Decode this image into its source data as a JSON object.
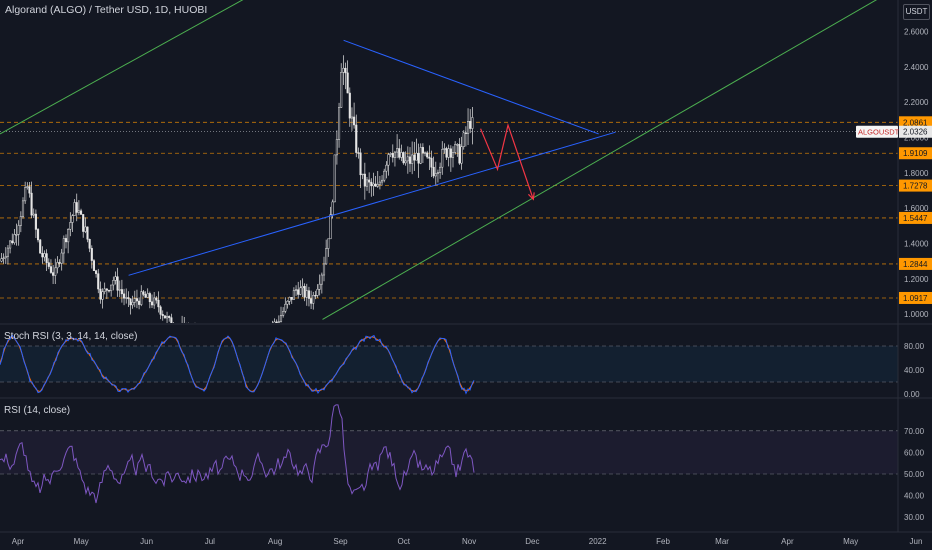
{
  "header": {
    "title": "Algorand (ALGO) / Tether USD, 1D, HUOBI",
    "currency_button": "USDT"
  },
  "colors": {
    "background": "#131722",
    "up": "#e6e6e6",
    "down": "#e6e6e6",
    "trend_blue": "#2962ff",
    "trend_green": "#4caf50",
    "arrow_red": "#f23645",
    "level_orange": "#ff9800",
    "stoch_k": "#2962ff",
    "stoch_d": "#ff6d00",
    "rsi": "#7e57c2"
  },
  "price_axis": {
    "ticks": [
      "2.6000",
      "2.4000",
      "2.2000",
      "2.0000",
      "1.8000",
      "1.6000",
      "1.4000",
      "1.2000",
      "1.0000"
    ],
    "tick_values": [
      2.6,
      2.4,
      2.2,
      2.0,
      1.8,
      1.6,
      1.4,
      1.2,
      1.0
    ]
  },
  "time_axis": [
    "Apr",
    "May",
    "Jun",
    "Jul",
    "Aug",
    "Sep",
    "Oct",
    "Nov",
    "Dec",
    "2022",
    "Feb",
    "Mar",
    "Apr",
    "May",
    "Jun"
  ],
  "levels": [
    {
      "label": "2.0861",
      "value": 2.0861
    },
    {
      "label": "1.9109",
      "value": 1.9109
    },
    {
      "label": "1.7278",
      "value": 1.7278
    },
    {
      "label": "1.5447",
      "value": 1.5447
    },
    {
      "label": "1.2844",
      "value": 1.2844
    },
    {
      "label": "1.0917",
      "value": 1.0917
    }
  ],
  "current_price": {
    "symbol": "ALGOUSDT",
    "label": "2.0326",
    "value": 2.0326
  },
  "stoch_rsi": {
    "label": "Stoch RSI (3, 3, 14, 14, close)",
    "ticks": [
      "80.00",
      "40.00",
      "0.00"
    ],
    "tick_values": [
      80,
      40,
      0
    ],
    "bands": [
      80,
      20
    ]
  },
  "rsi": {
    "label": "RSI (14, close)",
    "ticks": [
      "70.00",
      "60.00",
      "50.00",
      "40.00",
      "30.00"
    ],
    "tick_values": [
      70,
      60,
      50,
      40,
      30
    ],
    "bands": [
      70,
      50
    ]
  },
  "chart_data": {
    "type": "candlestick",
    "title": "Algorand (ALGO) / Tether USD, 1D, HUOBI",
    "x_range": [
      "2021-04-01",
      "2022-06-01"
    ],
    "y_range": [
      0.95,
      2.75
    ],
    "close_series": [
      {
        "date": "2021-04-01",
        "value": 1.3
      },
      {
        "date": "2021-04-08",
        "value": 1.45
      },
      {
        "date": "2021-04-14",
        "value": 1.72
      },
      {
        "date": "2021-04-20",
        "value": 1.35
      },
      {
        "date": "2021-04-27",
        "value": 1.22
      },
      {
        "date": "2021-05-01",
        "value": 1.4
      },
      {
        "date": "2021-05-07",
        "value": 1.62
      },
      {
        "date": "2021-05-12",
        "value": 1.45
      },
      {
        "date": "2021-05-19",
        "value": 1.1
      },
      {
        "date": "2021-05-25",
        "value": 1.2
      },
      {
        "date": "2021-06-01",
        "value": 1.05
      },
      {
        "date": "2021-06-08",
        "value": 1.1
      },
      {
        "date": "2021-06-15",
        "value": 1.05
      },
      {
        "date": "2021-06-22",
        "value": 0.92
      },
      {
        "date": "2021-07-01",
        "value": 0.9
      },
      {
        "date": "2021-07-15",
        "value": 0.82
      },
      {
        "date": "2021-08-01",
        "value": 0.88
      },
      {
        "date": "2021-08-10",
        "value": 0.95
      },
      {
        "date": "2021-08-20",
        "value": 1.15
      },
      {
        "date": "2021-08-27",
        "value": 1.08
      },
      {
        "date": "2021-09-01",
        "value": 1.25
      },
      {
        "date": "2021-09-05",
        "value": 1.55
      },
      {
        "date": "2021-09-08",
        "value": 2.05
      },
      {
        "date": "2021-09-10",
        "value": 2.45
      },
      {
        "date": "2021-09-14",
        "value": 2.15
      },
      {
        "date": "2021-09-20",
        "value": 1.75
      },
      {
        "date": "2021-09-27",
        "value": 1.7
      },
      {
        "date": "2021-10-03",
        "value": 1.95
      },
      {
        "date": "2021-10-10",
        "value": 1.85
      },
      {
        "date": "2021-10-17",
        "value": 1.9
      },
      {
        "date": "2021-10-24",
        "value": 1.82
      },
      {
        "date": "2021-10-31",
        "value": 1.95
      },
      {
        "date": "2021-11-05",
        "value": 1.9
      },
      {
        "date": "2021-11-10",
        "value": 2.1
      },
      {
        "date": "2021-11-12",
        "value": 2.0326
      }
    ],
    "trendlines": [
      {
        "name": "triangle-upper",
        "from": {
          "date": "2021-09-11",
          "value": 2.55
        },
        "to": {
          "date": "2022-01-10",
          "value": 2.02
        }
      },
      {
        "name": "triangle-lower",
        "from": {
          "date": "2021-06-01",
          "value": 1.22
        },
        "to": {
          "date": "2022-01-18",
          "value": 2.03
        }
      },
      {
        "name": "channel-upper",
        "from": {
          "date": "2021-04-01",
          "value": 2.02
        },
        "to": {
          "date": "2021-08-20",
          "value": 2.95
        }
      },
      {
        "name": "channel-lower",
        "from": {
          "date": "2021-09-01",
          "value": 0.97
        },
        "to": {
          "date": "2022-06-01",
          "value": 2.85
        }
      }
    ],
    "projection": [
      {
        "date": "2021-11-15",
        "value": 2.05
      },
      {
        "date": "2021-11-23",
        "value": 1.82
      },
      {
        "date": "2021-11-28",
        "value": 2.07
      },
      {
        "date": "2021-12-10",
        "value": 1.65
      }
    ]
  }
}
